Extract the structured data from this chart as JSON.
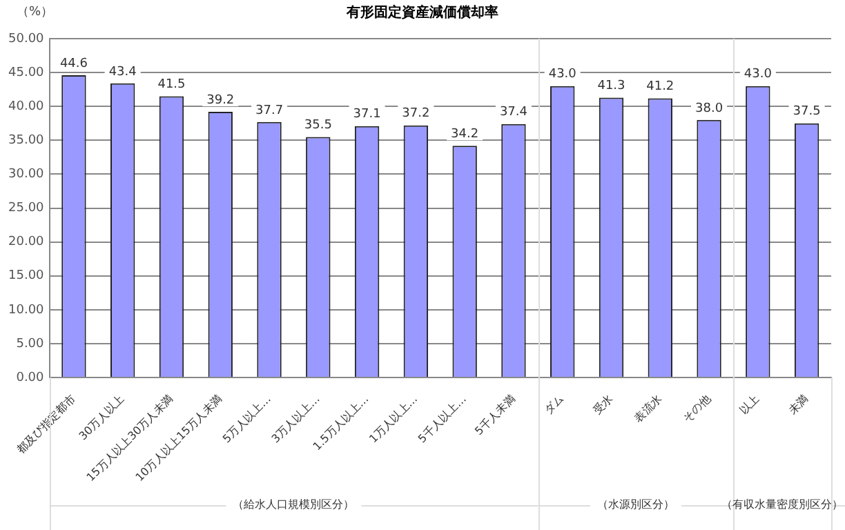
{
  "chart_data": {
    "type": "bar",
    "title": "有形固定資産減価償却率",
    "ylabel": "（%）",
    "categories": [
      "都及び指定都市",
      "30万人以上",
      "15万人以上30万人未満",
      "10万人以上15万人未満",
      "5万人以上…",
      "3万人以上…",
      "1.5万人以上…",
      "1万人以上…",
      "5千人以上…",
      "5千人未満",
      "ダム",
      "受水",
      "表流水",
      "その他",
      "以上",
      "未満"
    ],
    "values": [
      44.6,
      43.4,
      41.5,
      39.2,
      37.7,
      35.5,
      37.1,
      37.2,
      34.2,
      37.4,
      43.0,
      41.3,
      41.2,
      38.0,
      43.0,
      37.5
    ],
    "value_labels": [
      "44.6",
      "43.4",
      "41.5",
      "39.2",
      "37.7",
      "35.5",
      "37.1",
      "37.2",
      "34.2",
      "37.4",
      "43.0",
      "41.3",
      "41.2",
      "38.0",
      "43.0",
      "37.5"
    ],
    "color": "#9999ff",
    "ylim": [
      0,
      50
    ],
    "yticks": [
      {
        "value": 0,
        "label": "0.00"
      },
      {
        "value": 5,
        "label": "5.00"
      },
      {
        "value": 10,
        "label": "10.00"
      },
      {
        "value": 15,
        "label": "15.00"
      },
      {
        "value": 20,
        "label": "20.00"
      },
      {
        "value": 25,
        "label": "25.00"
      },
      {
        "value": 30,
        "label": "30.00"
      },
      {
        "value": 35,
        "label": "35.00"
      },
      {
        "value": 40,
        "label": "40.00"
      },
      {
        "value": 45,
        "label": "45.00"
      },
      {
        "value": 50,
        "label": "50.00"
      }
    ],
    "grid": "y",
    "annotations": [
      "（給水人口規模別区分）",
      "（水源別区分）",
      "（有収水量密度別区分）"
    ]
  }
}
